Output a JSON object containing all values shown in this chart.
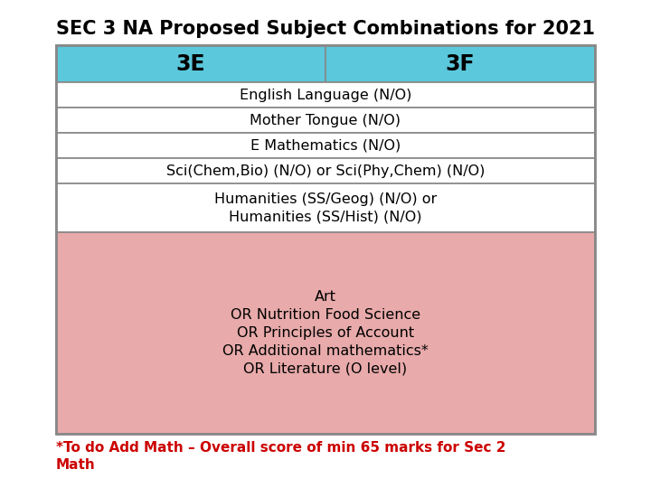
{
  "title": "SEC 3 NA Proposed Subject Combinations for 2021",
  "title_fontsize": 15,
  "title_fontweight": "bold",
  "header_labels": [
    "3E",
    "3F"
  ],
  "header_bg": "#5BC8DC",
  "header_fontsize": 17,
  "header_fontweight": "bold",
  "white_rows": [
    "English Language (N/O)",
    "Mother Tongue (N/O)",
    "E Mathematics (N/O)",
    "Sci(Chem,Bio) (N/O) or Sci(Phy,Chem) (N/O)"
  ],
  "humanities_text": "Humanities (SS/Geog) (N/O) or\nHumanities (SS/Hist) (N/O)",
  "pink_rows": [
    "Art",
    "OR Nutrition Food Science",
    "OR Principles of Account",
    "OR Additional mathematics*",
    "OR Literature (O level)"
  ],
  "pink_bg": "#E8AAAA",
  "white_bg": "#FFFFFF",
  "footnote": "*To do Add Math – Overall score of min 65 marks for Sec 2\nMath",
  "footnote_color": "#CC0000",
  "footnote_fontsize": 11,
  "row_fontsize": 11.5,
  "border_color": "#888888",
  "border_lw": 1.2
}
